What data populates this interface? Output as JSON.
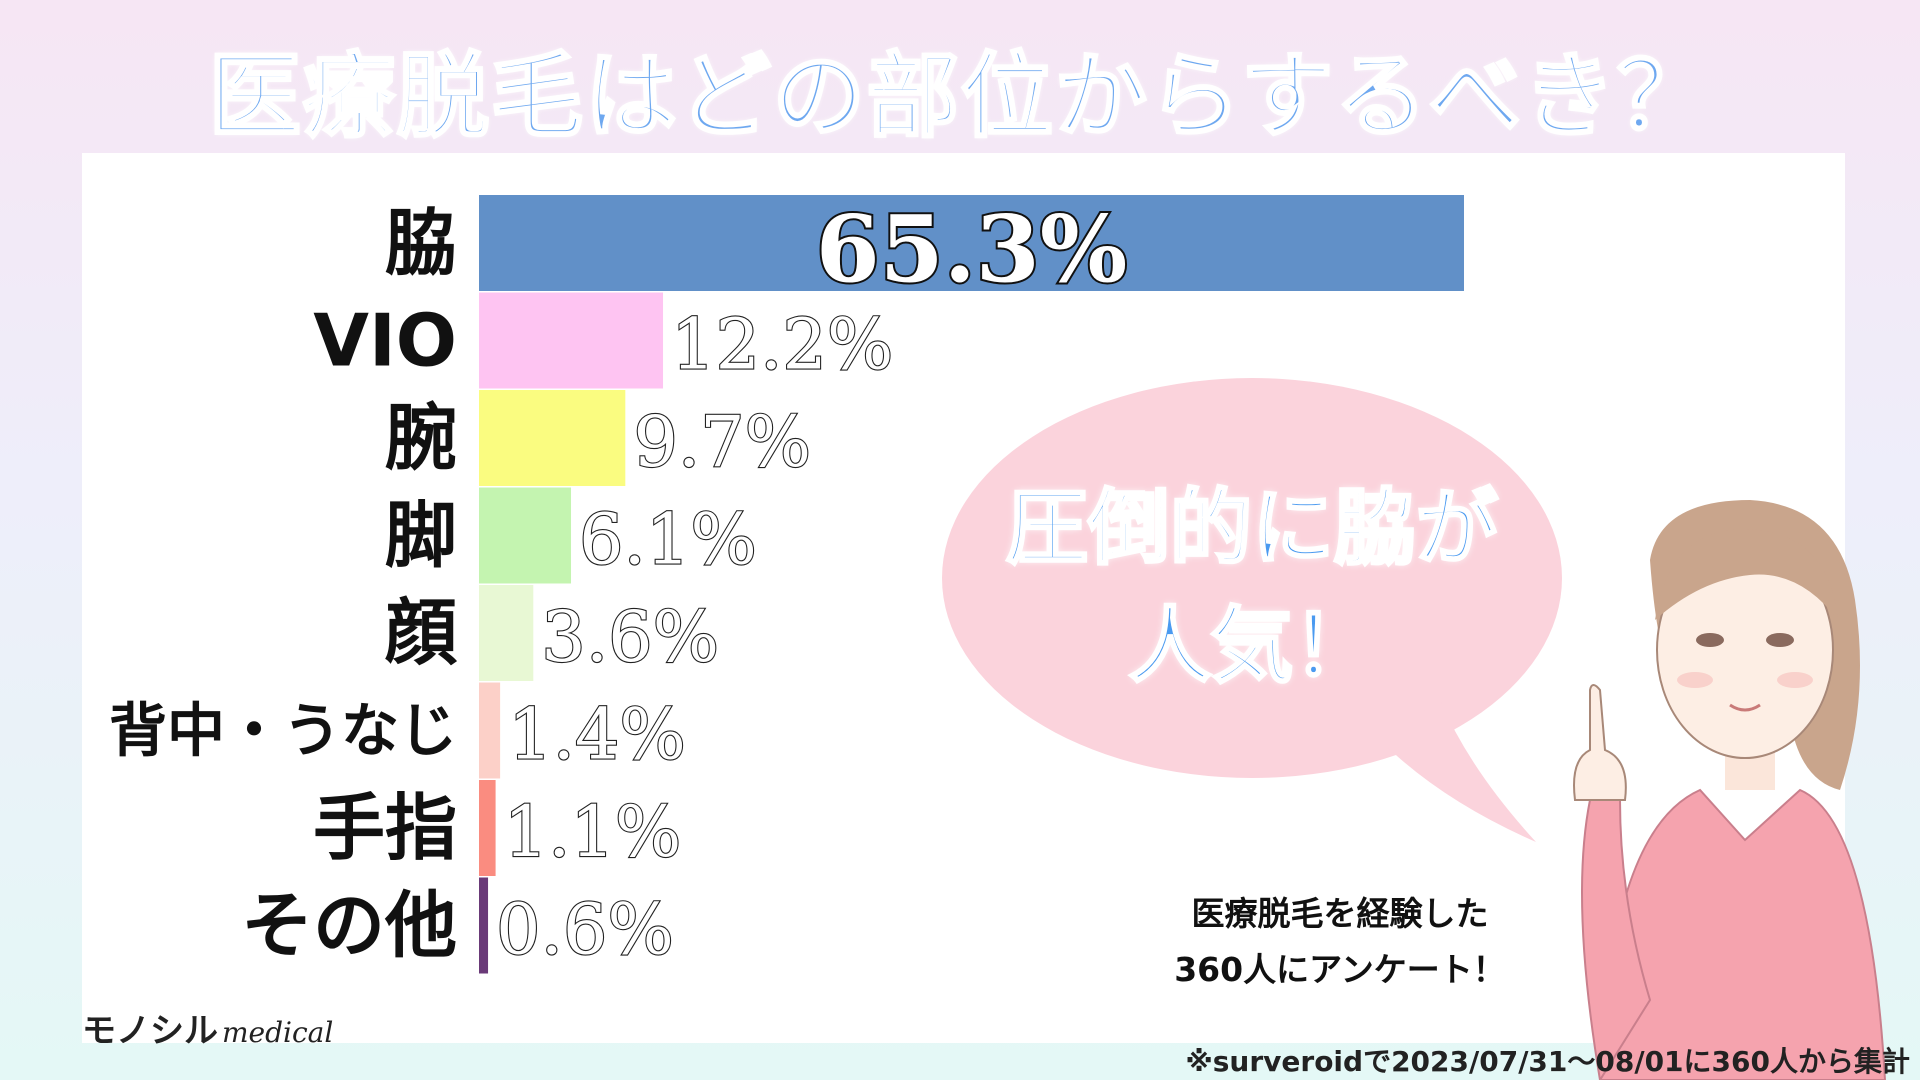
{
  "title": "医療脱毛はどの部位からするべき？",
  "bubble": {
    "line1": "圧倒的に脇が",
    "line2": "人気！"
  },
  "note": {
    "line1": "医療脱毛を経験した",
    "line2": "360人にアンケート！"
  },
  "brand": {
    "name": "モノシル",
    "sub": "medical"
  },
  "footnote": "※surveroidで2023/07/31～08/01に360人から集計",
  "chart_data": {
    "type": "bar",
    "orientation": "horizontal",
    "categories": [
      "脇",
      "VIO",
      "腕",
      "脚",
      "顔",
      "背中・うなじ",
      "手指",
      "その他"
    ],
    "values": [
      65.3,
      12.2,
      9.7,
      6.1,
      3.6,
      1.4,
      1.1,
      0.6
    ],
    "labels": [
      "65.3%",
      "12.2%",
      "9.7%",
      "6.1%",
      "3.6%",
      "1.4%",
      "1.1%",
      "0.6%"
    ],
    "colors": [
      "#6190c8",
      "#fec4f2",
      "#fafc80",
      "#c4f4b0",
      "#e8f8d4",
      "#fcd0c8",
      "#fa8c80",
      "#6a3a78"
    ],
    "title": "",
    "xlabel": "",
    "ylabel": ""
  }
}
